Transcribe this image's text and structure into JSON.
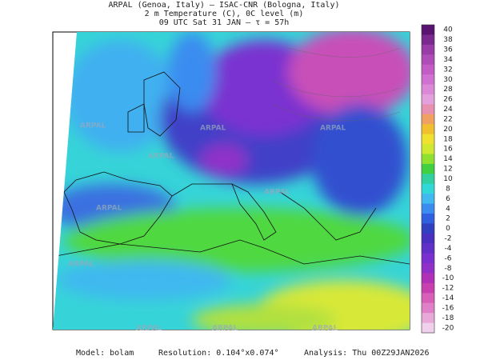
{
  "header": {
    "line1": "ARPAL (Genoa, Italy)  –  ISAC-CNR (Bologna, Italy)",
    "line2": "2 m Temperature (C), 0C level (m)",
    "line3": "09 UTC Sat 31 JAN  –  τ = 57h"
  },
  "watermark": "ARPAL",
  "colorbar": {
    "labels": [
      40,
      38,
      36,
      34,
      32,
      30,
      28,
      26,
      24,
      22,
      20,
      18,
      16,
      14,
      12,
      10,
      8,
      6,
      4,
      2,
      0,
      -2,
      -4,
      -6,
      -8,
      -10,
      -12,
      -14,
      -16,
      -18,
      -20
    ],
    "colors": [
      "#5a1470",
      "#7a2a8e",
      "#9a3ca8",
      "#b04cb8",
      "#c45cc6",
      "#d070d0",
      "#dc88d8",
      "#e4a0dc",
      "#e890b0",
      "#f0a060",
      "#f0c030",
      "#f0e030",
      "#d0e830",
      "#90e030",
      "#40d040",
      "#30d0a0",
      "#30d8d8",
      "#40b8f0",
      "#3a8cf0",
      "#3060e0",
      "#3040c0",
      "#4a30c0",
      "#6030c8",
      "#7a30d0",
      "#9030c8",
      "#b030b8",
      "#c840b0",
      "#d860b8",
      "#e080c8",
      "#e8a8d8",
      "#f0d0ec"
    ]
  },
  "footer": {
    "model": "Model: bolam",
    "resolution": "Resolution: 0.104°x0.074°",
    "analysis": "Analysis: Thu 00Z29JAN2026"
  }
}
